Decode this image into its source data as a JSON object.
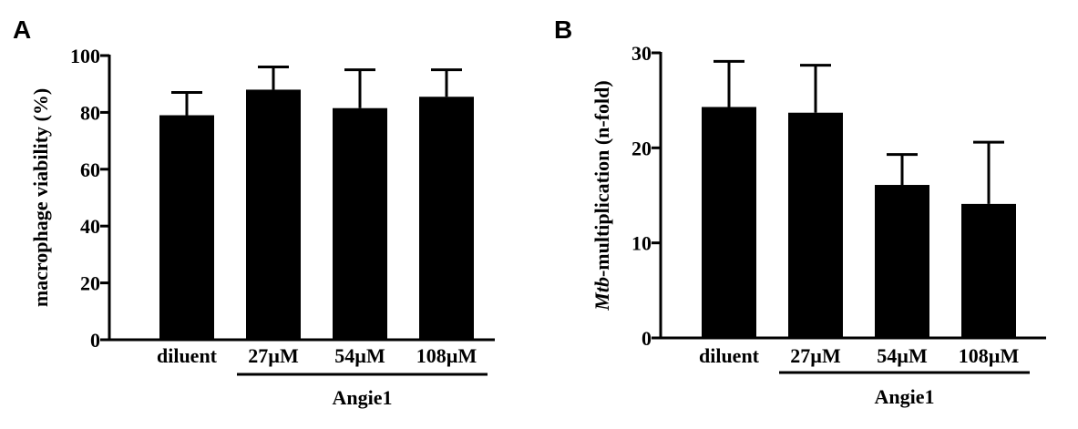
{
  "chart_data": [
    {
      "panel": "A",
      "type": "bar",
      "categories": [
        "diluent",
        "27µM",
        "54µM",
        "108µM"
      ],
      "values": [
        79,
        88,
        81.5,
        85.5
      ],
      "errors": [
        8,
        8,
        13.5,
        9.5
      ],
      "group": {
        "label": "Angie1",
        "categories": [
          "27µM",
          "54µM",
          "108µM"
        ]
      },
      "ylabel": "macrophage viability (%)",
      "ylabel_prefix_italic": "",
      "ylim": [
        0,
        100
      ],
      "yticks": [
        0,
        20,
        40,
        60,
        80,
        100
      ],
      "bar_color": "#000000"
    },
    {
      "panel": "B",
      "type": "bar",
      "categories": [
        "diluent",
        "27µM",
        "54µM",
        "108µM"
      ],
      "values": [
        24.3,
        23.7,
        16.1,
        14.1
      ],
      "errors": [
        4.8,
        5,
        3.2,
        6.5
      ],
      "group": {
        "label": "Angie1",
        "categories": [
          "27µM",
          "54µM",
          "108µM"
        ]
      },
      "ylabel": "-multiplication (n-fold)",
      "ylabel_prefix_italic": "Mtb",
      "ylim": [
        0,
        30
      ],
      "yticks": [
        0,
        10,
        20,
        30
      ],
      "bar_color": "#000000"
    }
  ]
}
